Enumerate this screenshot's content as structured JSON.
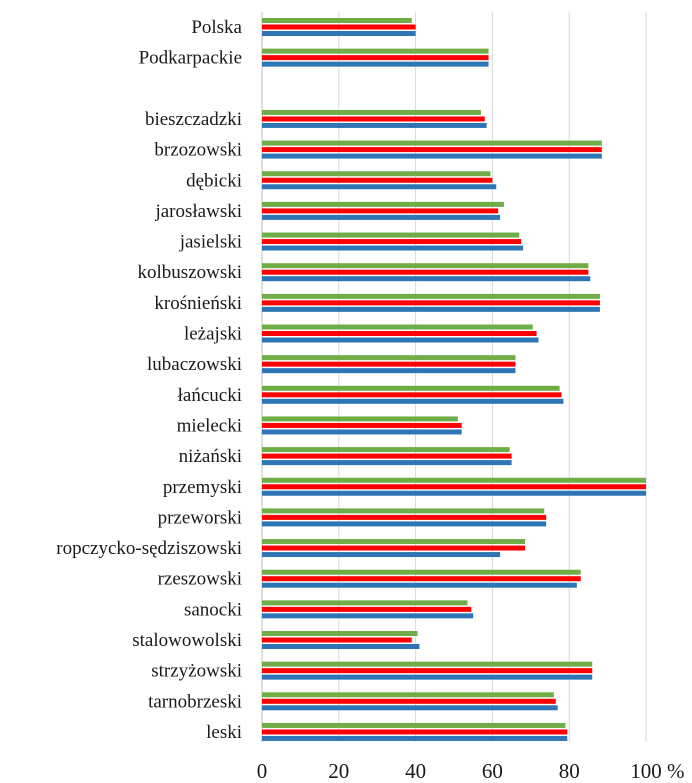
{
  "chart_data": {
    "type": "bar",
    "orientation": "horizontal",
    "categories": [
      "Polska",
      "Podkarpackie",
      "",
      "bieszczadzki",
      "brzozowski",
      "dębicki",
      "jarosławski",
      "jasielski",
      "kolbuszowski",
      "krośnieński",
      "leżajski",
      "lubaczowski",
      "łańcucki",
      "mielecki",
      "niżański",
      "przemyski",
      "przeworski",
      "ropczycko-sędziszowski",
      "rzeszowski",
      "sanocki",
      "stalowowolski",
      "strzyżowski",
      "tarnobrzeski",
      "leski"
    ],
    "series": [
      {
        "color": "#70ad47",
        "values": [
          39,
          59,
          null,
          57,
          88.5,
          59.5,
          63,
          67,
          85,
          88,
          70.5,
          66,
          77.5,
          51,
          64.5,
          100,
          73.5,
          68.5,
          83,
          53.5,
          40.5,
          86,
          76,
          79
        ]
      },
      {
        "color": "#ff0000",
        "values": [
          40,
          59,
          null,
          58,
          88.5,
          60,
          61.5,
          67.5,
          85,
          88,
          71.5,
          66,
          78,
          52,
          65,
          100,
          74,
          68.5,
          83,
          54.5,
          39,
          86,
          76.5,
          79.5
        ]
      },
      {
        "color": "#2e75b6",
        "values": [
          40,
          59,
          null,
          58.5,
          88.5,
          61,
          62,
          68,
          85.5,
          88,
          72,
          66,
          78.5,
          52,
          65,
          100,
          74,
          62,
          82,
          55,
          41,
          86,
          77,
          79.5
        ]
      }
    ],
    "xlim": [
      0,
      100
    ],
    "xticks": [
      "0",
      "20",
      "40",
      "60",
      "80",
      "100"
    ],
    "x_unit": "%",
    "grid": true,
    "legend": "none"
  }
}
